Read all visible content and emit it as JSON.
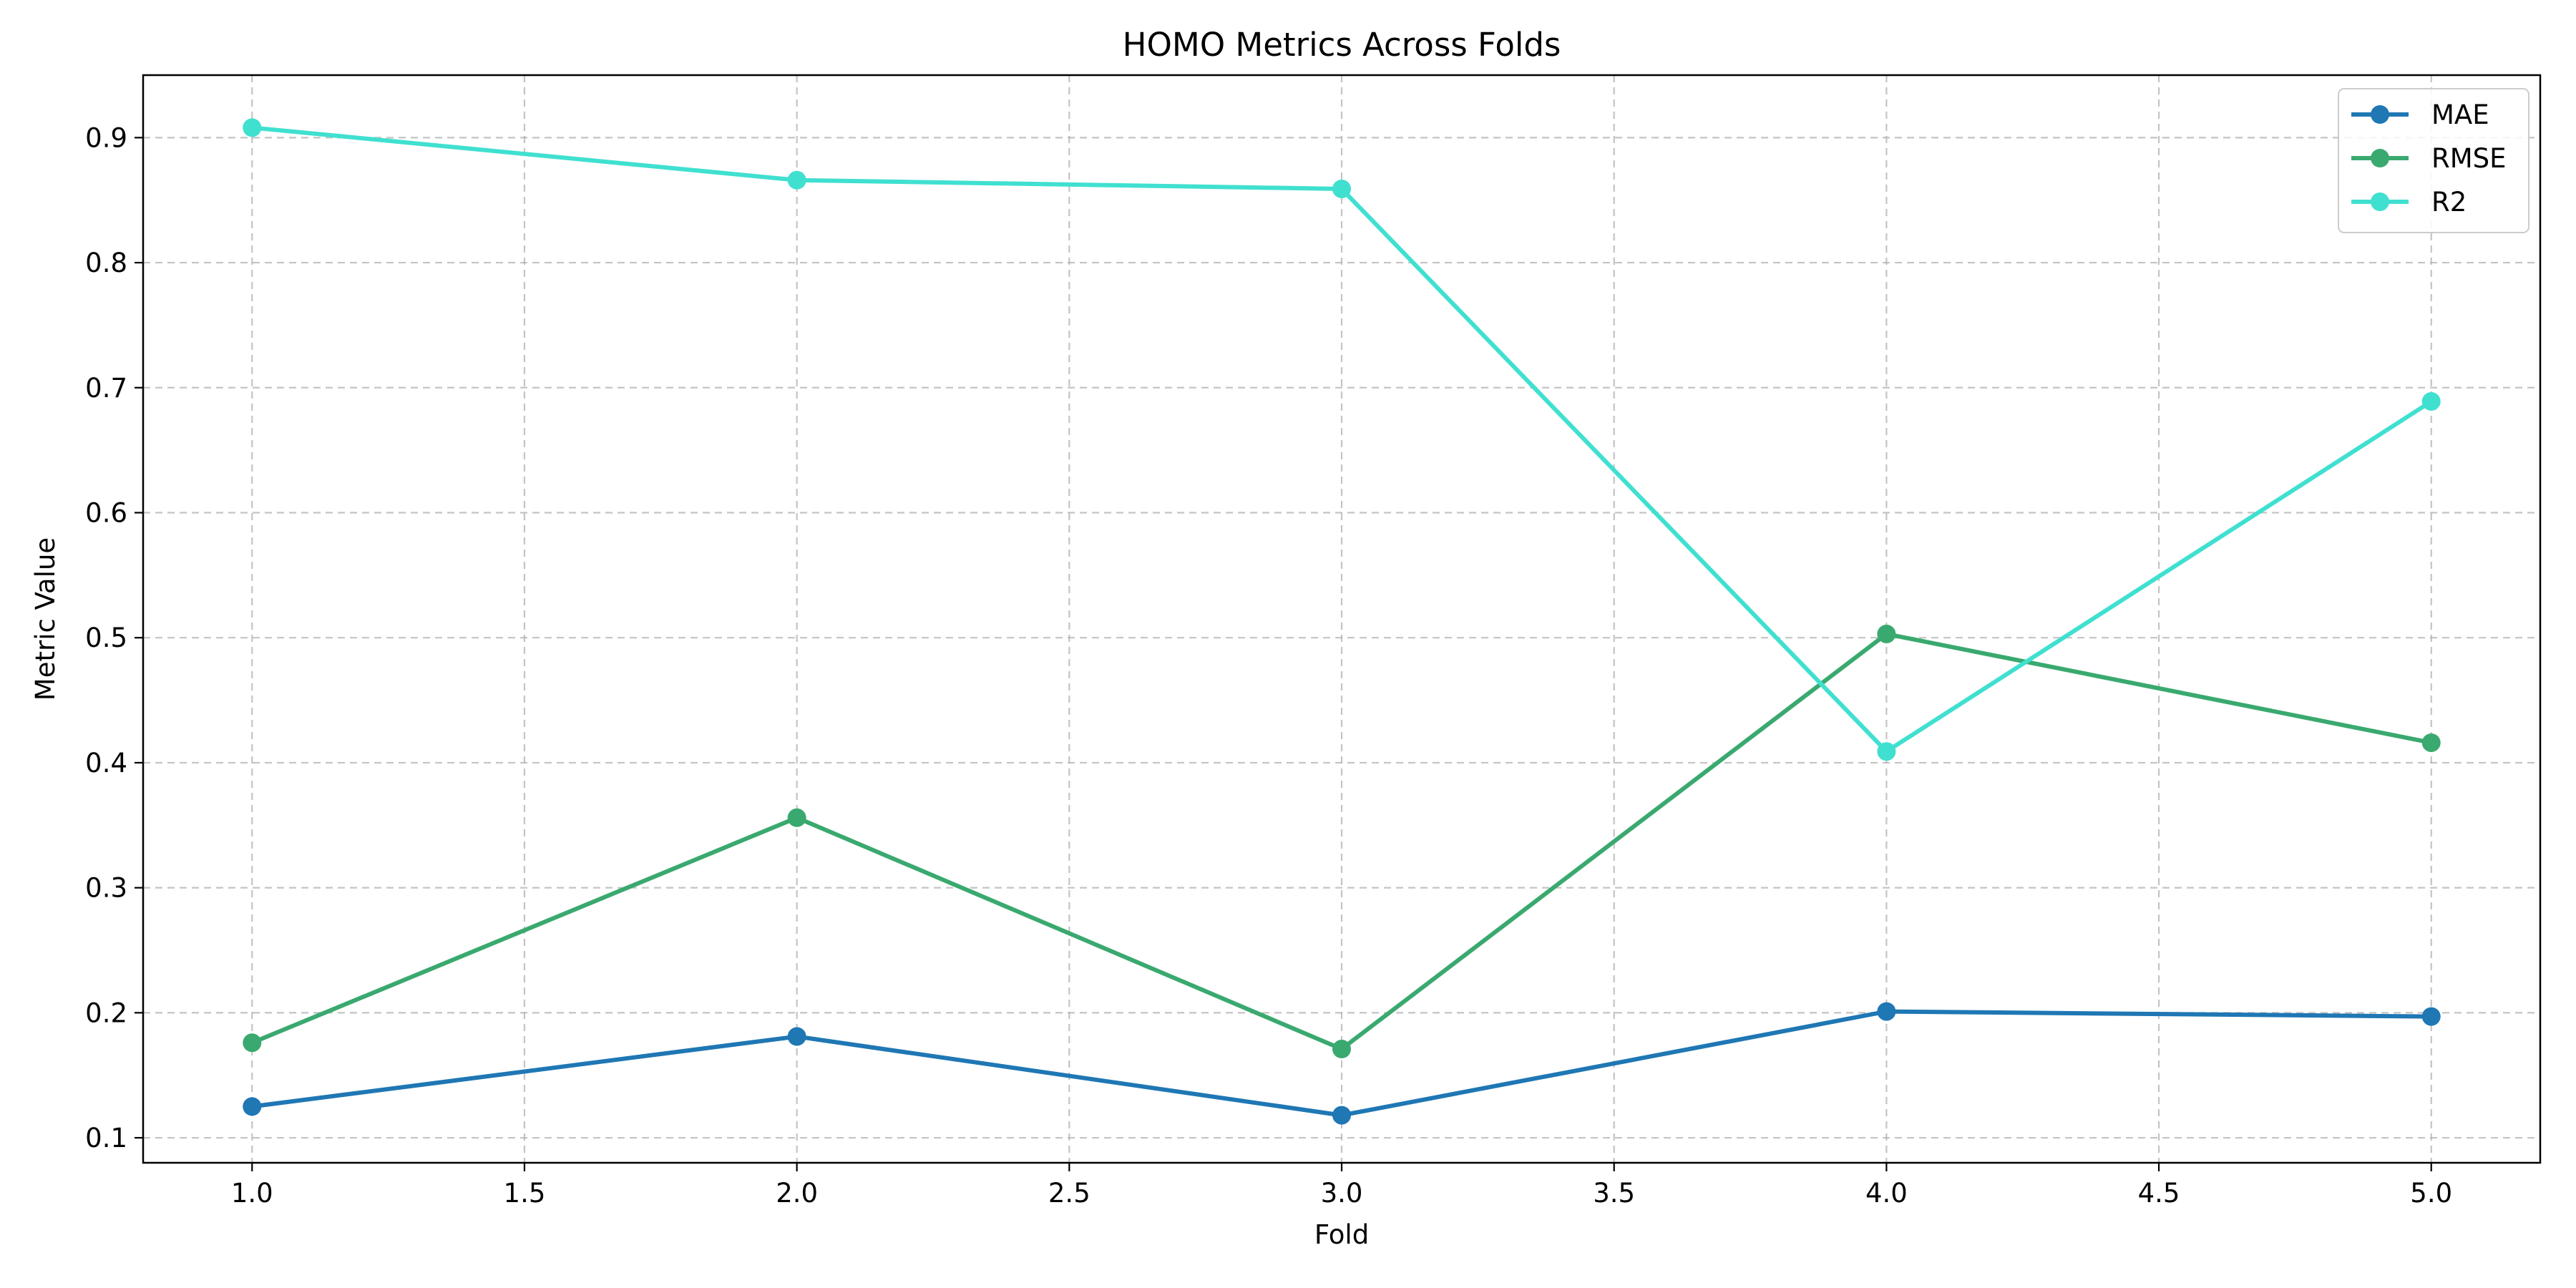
{
  "chart_data": {
    "type": "line",
    "title": "HOMO Metrics Across Folds",
    "xlabel": "Fold",
    "ylabel": "Metric Value",
    "x": [
      1,
      2,
      3,
      4,
      5
    ],
    "xlim": [
      0.8,
      5.2
    ],
    "ylim": [
      0.08,
      0.95
    ],
    "xticks": [
      "1.0",
      "1.5",
      "2.0",
      "2.5",
      "3.0",
      "3.5",
      "4.0",
      "4.5",
      "5.0"
    ],
    "xtick_values": [
      1.0,
      1.5,
      2.0,
      2.5,
      3.0,
      3.5,
      4.0,
      4.5,
      5.0
    ],
    "yticks": [
      "0.1",
      "0.2",
      "0.3",
      "0.4",
      "0.5",
      "0.6",
      "0.7",
      "0.8",
      "0.9"
    ],
    "ytick_values": [
      0.1,
      0.2,
      0.3,
      0.4,
      0.5,
      0.6,
      0.7,
      0.8,
      0.9
    ],
    "grid": true,
    "legend_position": "top-right",
    "series": [
      {
        "name": "MAE",
        "color": "#1f77b4",
        "values": [
          0.125,
          0.181,
          0.118,
          0.201,
          0.197
        ]
      },
      {
        "name": "RMSE",
        "color": "#3aa96f",
        "values": [
          0.176,
          0.356,
          0.171,
          0.503,
          0.416
        ]
      },
      {
        "name": "R2",
        "color": "#40e0d0",
        "values": [
          0.908,
          0.866,
          0.859,
          0.409,
          0.689
        ]
      }
    ]
  }
}
